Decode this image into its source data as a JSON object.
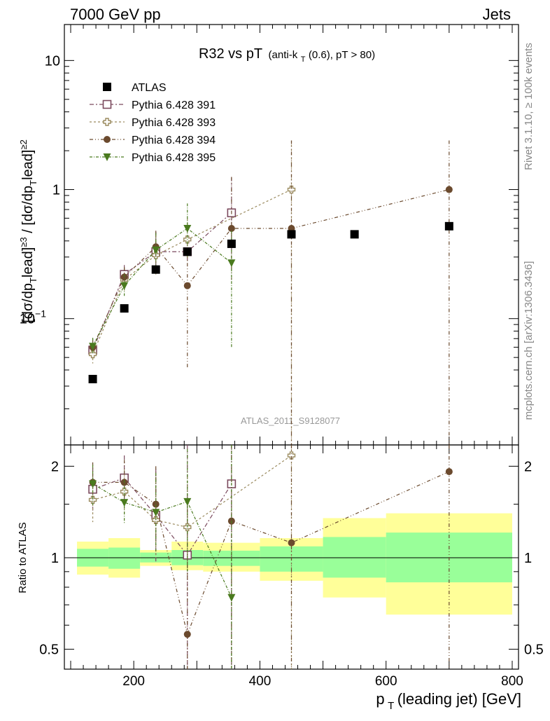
{
  "header": {
    "left": "7000 GeV pp",
    "right": "Jets"
  },
  "side_labels": {
    "rivet": "Rivet 3.1.10, ≥ 100k events",
    "mcplots": "mcplots.cern.ch [arXiv:1306.3436]"
  },
  "analysis_id": "ATLAS_2011_S9128077",
  "chart_data": {
    "type": "scatter",
    "title_main": "R32 vs pT",
    "title_sub_a": "(anti-k",
    "title_sub_b": "T",
    "title_sub_c": "(0.6), pT > 80)",
    "x_label_a": "p",
    "x_label_b": "T",
    "x_label_c": "(leading jet) [GeV]",
    "x_lim": [
      90,
      810
    ],
    "x_ticks": [
      200,
      400,
      600,
      800
    ],
    "x_tick_labels": [
      "200",
      "400",
      "600",
      "800"
    ],
    "main_panel": {
      "scale": "log",
      "y_lim": [
        0.0105,
        19
      ],
      "y_ticks": [
        {
          "value": 10,
          "label_a": "10",
          "label_b": ""
        },
        {
          "value": 1,
          "label_a": "1",
          "label_b": ""
        },
        {
          "value": 0.1,
          "label_a": "10",
          "label_b": "−1"
        }
      ],
      "y_label": "[dσ/dpᵀlead]≥3 / [dσ/dpᵀlead]≥2"
    },
    "ratio_panel": {
      "scale": "log",
      "y_lim": [
        0.43,
        2.35
      ],
      "y_ticks": [
        {
          "value": 2,
          "label": "2"
        },
        {
          "value": 1,
          "label": "1"
        },
        {
          "value": 0.5,
          "label": "0.5"
        }
      ],
      "y_label": "Ratio to ATLAS",
      "bands": [
        {
          "x": [
            110,
            160
          ],
          "green": [
            0.935,
            1.07
          ],
          "yellow": [
            0.88,
            1.13
          ]
        },
        {
          "x": [
            160,
            210
          ],
          "green": [
            0.92,
            1.08
          ],
          "yellow": [
            0.86,
            1.16
          ]
        },
        {
          "x": [
            210,
            260
          ],
          "green": [
            0.965,
            1.04
          ],
          "yellow": [
            0.94,
            1.06
          ]
        },
        {
          "x": [
            260,
            310
          ],
          "green": [
            0.945,
            1.06
          ],
          "yellow": [
            0.91,
            1.13
          ]
        },
        {
          "x": [
            310,
            400
          ],
          "green": [
            0.94,
            1.055
          ],
          "yellow": [
            0.9,
            1.12
          ]
        },
        {
          "x": [
            400,
            500
          ],
          "green": [
            0.9,
            1.09
          ],
          "yellow": [
            0.84,
            1.16
          ]
        },
        {
          "x": [
            500,
            600
          ],
          "green": [
            0.86,
            1.17
          ],
          "yellow": [
            0.74,
            1.35
          ]
        },
        {
          "x": [
            600,
            800
          ],
          "green": [
            0.83,
            1.21
          ],
          "yellow": [
            0.65,
            1.4
          ]
        }
      ]
    },
    "data": {
      "name": "ATLAS",
      "color": "#000000",
      "x": [
        135,
        185,
        235,
        285,
        355,
        450,
        550,
        700
      ],
      "y": [
        0.034,
        0.12,
        0.24,
        0.33,
        0.38,
        0.45,
        0.45,
        0.52
      ]
    },
    "series": [
      {
        "name": "Pythia 6.428 391",
        "color": "#7b4a5e",
        "marker": "open-square",
        "x": [
          135,
          185,
          235,
          285,
          355
        ],
        "y": [
          0.057,
          0.22,
          0.33,
          0.33,
          0.66
        ],
        "err": [
          [
            0.049,
            0.067
          ],
          [
            0.185,
            0.26
          ],
          [
            0.23,
            0.47
          ],
          [
            0.28,
            0.42
          ],
          [
            0.3,
            1.25
          ]
        ],
        "ratio": [
          1.68,
          1.83,
          1.38,
          1.02,
          1.75
        ],
        "ratio_err": [
          [
            1.43,
            1.98
          ],
          [
            1.54,
            2.17
          ],
          [
            0.96,
            1.96
          ],
          [
            0.43,
            2.35
          ],
          [
            0.43,
            2.35
          ]
        ]
      },
      {
        "name": "Pythia 6.428 393",
        "color": "#9a8a5e",
        "marker": "open-cross",
        "x": [
          135,
          185,
          235,
          285,
          450
        ],
        "y": [
          0.053,
          0.2,
          0.31,
          0.41,
          1.0
        ],
        "err": [
          [
            0.045,
            0.062
          ],
          [
            0.165,
            0.245
          ],
          [
            0.22,
            0.44
          ],
          [
            0.28,
            0.6
          ],
          [
            0.01,
            2.4
          ]
        ],
        "ratio": [
          1.55,
          1.65,
          1.33,
          1.26,
          2.17
        ],
        "ratio_err": [
          [
            1.31,
            1.82
          ],
          [
            1.39,
            1.95
          ],
          [
            1.0,
            1.9
          ],
          [
            0.86,
            1.85
          ],
          [
            0.43,
            2.35
          ]
        ]
      },
      {
        "name": "Pythia 6.428 394",
        "color": "#6b4a2e",
        "marker": "filled-circle",
        "x": [
          135,
          185,
          235,
          285,
          355,
          450,
          700
        ],
        "y": [
          0.06,
          0.21,
          0.36,
          0.18,
          0.5,
          0.5,
          1.0
        ],
        "err": [
          [
            0.052,
            0.07
          ],
          [
            0.175,
            0.25
          ],
          [
            0.27,
            0.48
          ],
          [
            0.042,
            0.33
          ],
          [
            0.2,
            1.25
          ],
          [
            0.01,
            2.4
          ],
          [
            0.01,
            2.4
          ]
        ],
        "ratio": [
          1.77,
          1.77,
          1.5,
          0.56,
          1.32,
          1.12,
          1.92
        ],
        "ratio_err": [
          [
            1.5,
            2.06
          ],
          [
            1.48,
            2.1
          ],
          [
            1.13,
            2.0
          ],
          [
            0.43,
            1.45
          ],
          [
            0.43,
            2.35
          ],
          [
            0.43,
            2.35
          ],
          [
            0.43,
            2.35
          ]
        ]
      },
      {
        "name": "Pythia 6.428 395",
        "color": "#4a7a1e",
        "marker": "filled-triangle-down",
        "x": [
          135,
          185,
          235,
          285,
          355
        ],
        "y": [
          0.061,
          0.18,
          0.34,
          0.5,
          0.27
        ],
        "err": [
          [
            0.053,
            0.071
          ],
          [
            0.15,
            0.22
          ],
          [
            0.25,
            0.46
          ],
          [
            0.3,
            0.78
          ],
          [
            0.06,
            0.48
          ]
        ],
        "ratio": [
          1.75,
          1.52,
          1.41,
          1.53,
          0.74
        ],
        "ratio_err": [
          [
            1.49,
            2.02
          ],
          [
            1.29,
            1.8
          ],
          [
            1.05,
            1.9
          ],
          [
            0.9,
            2.28
          ],
          [
            0.43,
            2.35
          ]
        ]
      }
    ]
  }
}
